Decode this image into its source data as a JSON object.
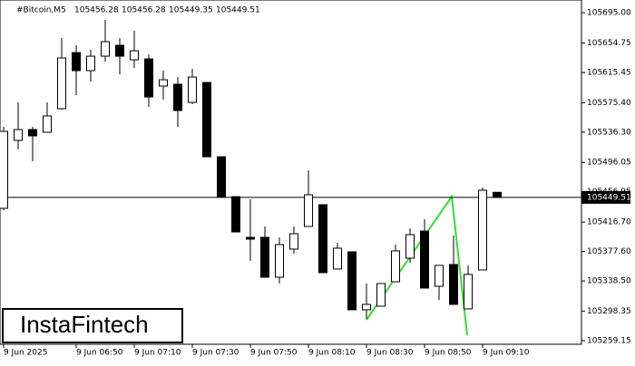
{
  "chart_data": {
    "type": "candlestick",
    "title": "#Bitcoin,M5",
    "categories": [
      "9 Jun 2025",
      null,
      null,
      null,
      null,
      "9 Jun 06:50",
      null,
      null,
      null,
      "9 Jun 07:10",
      null,
      null,
      null,
      "9 Jun 07:30",
      null,
      null,
      null,
      "9 Jun 07:50",
      null,
      null,
      null,
      "9 Jun 08:10",
      null,
      null,
      null,
      "9 Jun 08:30",
      null,
      null,
      null,
      "9 Jun 08:50",
      null,
      null,
      null,
      "9 Jun 09:10",
      null
    ],
    "open": [
      105435.0,
      105525.3,
      105539.7,
      105536.1,
      105567.4,
      105642.0,
      105618.0,
      105637.2,
      105651.7,
      105632.4,
      105633.6,
      105597.5,
      105599.9,
      105575.8,
      105602.3,
      105503.5,
      105450.5,
      105396.4,
      105396.4,
      105343.4,
      105380.8,
      105410.9,
      105439.8,
      105354.3,
      105377.2,
      105300.1,
      105304.9,
      105337.4,
      105368.7,
      105404.8,
      105331.4,
      105360.3,
      105301.3,
      105353.1,
      105456.28
    ],
    "high": [
      105543.3,
      105575.8,
      105543.3,
      105575.8,
      105661.3,
      105651.7,
      105645.6,
      105685.4,
      105661.3,
      105670.9,
      105639.6,
      105618.0,
      105609.5,
      105620.4,
      105602.3,
      105503.5,
      105450.5,
      105446.9,
      105410.9,
      105396.4,
      105410.9,
      105485.5,
      105439.8,
      105389.2,
      105377.2,
      105335.0,
      105335.0,
      105386.8,
      105408.4,
      105420.5,
      105359.1,
      105398.8,
      105359.1,
      105462.6,
      105456.28
    ],
    "low": [
      105432.5,
      105513.2,
      105497.5,
      105536.1,
      105566.2,
      105585.4,
      105603.5,
      105630.0,
      105613.1,
      105621.6,
      105569.8,
      105579.4,
      105543.3,
      105573.4,
      105503.5,
      105450.5,
      105403.6,
      105365.1,
      105343.4,
      105335.0,
      105374.7,
      105410.9,
      105349.5,
      105354.3,
      105300.1,
      105288.1,
      105304.9,
      105337.4,
      105362.7,
      105329.0,
      105313.3,
      105307.3,
      105301.3,
      105353.1,
      105449.35
    ],
    "close": [
      105537.3,
      105539.7,
      105531.3,
      105557.8,
      105634.8,
      105618.0,
      105637.2,
      105656.5,
      105637.2,
      105644.4,
      105583.0,
      105605.9,
      105565.0,
      105609.5,
      105503.5,
      105450.5,
      105403.6,
      105394.0,
      105343.4,
      105386.8,
      105401.2,
      105453.0,
      105349.5,
      105382.0,
      105300.1,
      105307.3,
      105335.0,
      105378.4,
      105400.0,
      105329.0,
      105359.1,
      105307.3,
      105347.1,
      105459.0,
      105449.51
    ],
    "up_color": "#ffffff",
    "down_color": "#000000",
    "pattern_color": "#33dd33",
    "ylim": [
      105254.3,
      105711.9
    ],
    "yticks": [
      {
        "value": 105695.0,
        "label": "105695.00"
      },
      {
        "value": 105654.75,
        "label": "105654.75"
      },
      {
        "value": 105615.45,
        "label": "105615.45"
      },
      {
        "value": 105575.4,
        "label": "105575.40"
      },
      {
        "value": 105536.3,
        "label": "105536.30"
      },
      {
        "value": 105496.05,
        "label": "105496.05"
      },
      {
        "value": 105456.95,
        "label": "105456.95"
      },
      {
        "value": 105416.7,
        "label": "105416.70"
      },
      {
        "value": 105377.6,
        "label": "105377.60"
      },
      {
        "value": 105338.5,
        "label": "105338.50"
      },
      {
        "value": 105298.35,
        "label": "105298.35"
      },
      {
        "value": 105259.15,
        "label": "105259.15"
      }
    ],
    "watermark": "InstaFintech"
  }
}
